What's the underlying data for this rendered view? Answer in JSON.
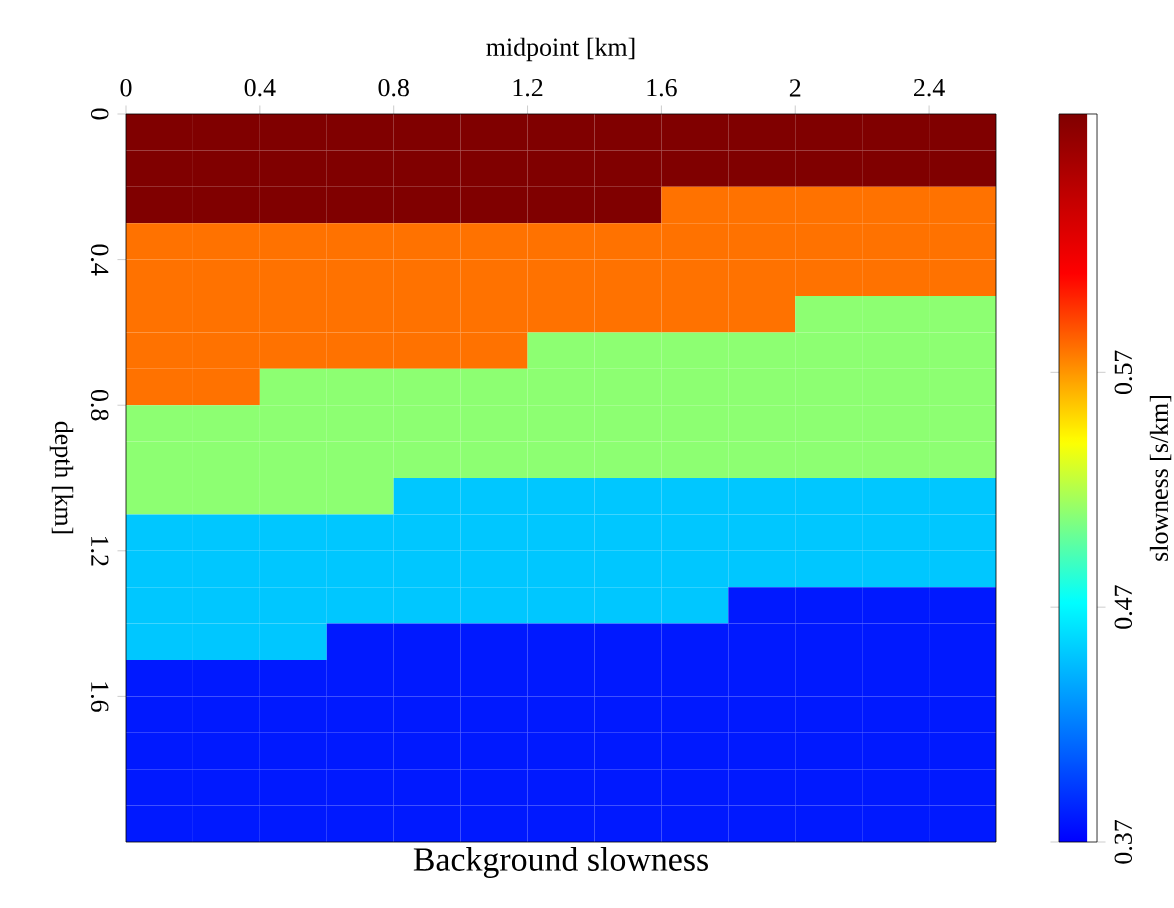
{
  "chart_data": {
    "type": "heatmap",
    "title": "Background slowness",
    "xlabel": "midpoint [km]",
    "ylabel": "depth [km]",
    "clabel": "slowness [s/km]",
    "x": [
      0.1,
      0.3,
      0.5,
      0.7,
      0.9,
      1.1,
      1.3,
      1.5,
      1.7,
      1.9,
      2.1,
      2.3,
      2.5
    ],
    "y": [
      0.05,
      0.15,
      0.25,
      0.35,
      0.45,
      0.55,
      0.65,
      0.75,
      0.85,
      0.95,
      1.05,
      1.15,
      1.25,
      1.35,
      1.45,
      1.55,
      1.65,
      1.75,
      1.85,
      1.95
    ],
    "cells": [
      [
        0.68,
        0.68,
        0.68,
        0.68,
        0.68,
        0.68,
        0.68,
        0.68,
        0.68,
        0.68,
        0.68,
        0.68,
        0.68
      ],
      [
        0.68,
        0.68,
        0.68,
        0.68,
        0.68,
        0.68,
        0.68,
        0.68,
        0.68,
        0.68,
        0.68,
        0.68,
        0.68
      ],
      [
        0.68,
        0.68,
        0.68,
        0.68,
        0.68,
        0.68,
        0.68,
        0.68,
        0.58,
        0.58,
        0.58,
        0.58,
        0.58
      ],
      [
        0.58,
        0.58,
        0.58,
        0.58,
        0.58,
        0.58,
        0.58,
        0.58,
        0.58,
        0.58,
        0.58,
        0.58,
        0.58
      ],
      [
        0.58,
        0.58,
        0.58,
        0.58,
        0.58,
        0.58,
        0.58,
        0.58,
        0.58,
        0.58,
        0.58,
        0.58,
        0.58
      ],
      [
        0.58,
        0.58,
        0.58,
        0.58,
        0.58,
        0.58,
        0.58,
        0.58,
        0.58,
        0.58,
        0.51,
        0.51,
        0.51
      ],
      [
        0.58,
        0.58,
        0.58,
        0.58,
        0.58,
        0.58,
        0.51,
        0.51,
        0.51,
        0.51,
        0.51,
        0.51,
        0.51
      ],
      [
        0.58,
        0.58,
        0.51,
        0.51,
        0.51,
        0.51,
        0.51,
        0.51,
        0.51,
        0.51,
        0.51,
        0.51,
        0.51
      ],
      [
        0.51,
        0.51,
        0.51,
        0.51,
        0.51,
        0.51,
        0.51,
        0.51,
        0.51,
        0.51,
        0.51,
        0.51,
        0.51
      ],
      [
        0.51,
        0.51,
        0.51,
        0.51,
        0.51,
        0.51,
        0.51,
        0.51,
        0.51,
        0.51,
        0.51,
        0.51,
        0.51
      ],
      [
        0.51,
        0.51,
        0.51,
        0.51,
        0.45,
        0.45,
        0.45,
        0.45,
        0.45,
        0.45,
        0.45,
        0.45,
        0.45
      ],
      [
        0.45,
        0.45,
        0.45,
        0.45,
        0.45,
        0.45,
        0.45,
        0.45,
        0.45,
        0.45,
        0.45,
        0.45,
        0.45
      ],
      [
        0.45,
        0.45,
        0.45,
        0.45,
        0.45,
        0.45,
        0.45,
        0.45,
        0.45,
        0.45,
        0.45,
        0.45,
        0.45
      ],
      [
        0.45,
        0.45,
        0.45,
        0.45,
        0.45,
        0.45,
        0.45,
        0.45,
        0.45,
        0.38,
        0.38,
        0.38,
        0.38
      ],
      [
        0.45,
        0.45,
        0.45,
        0.38,
        0.38,
        0.38,
        0.38,
        0.38,
        0.38,
        0.38,
        0.38,
        0.38,
        0.38
      ],
      [
        0.38,
        0.38,
        0.38,
        0.38,
        0.38,
        0.38,
        0.38,
        0.38,
        0.38,
        0.38,
        0.38,
        0.38,
        0.38
      ],
      [
        0.38,
        0.38,
        0.38,
        0.38,
        0.38,
        0.38,
        0.38,
        0.38,
        0.38,
        0.38,
        0.38,
        0.38,
        0.38
      ],
      [
        0.38,
        0.38,
        0.38,
        0.38,
        0.38,
        0.38,
        0.38,
        0.38,
        0.38,
        0.38,
        0.38,
        0.38,
        0.38
      ],
      [
        0.38,
        0.38,
        0.38,
        0.38,
        0.38,
        0.38,
        0.38,
        0.38,
        0.38,
        0.38,
        0.38,
        0.38,
        0.38
      ],
      [
        0.38,
        0.38,
        0.38,
        0.38,
        0.38,
        0.38,
        0.38,
        0.38,
        0.38,
        0.38,
        0.38,
        0.38,
        0.38
      ]
    ],
    "xlim": [
      0,
      2.6
    ],
    "ylim": [
      2.0,
      0
    ],
    "xticks": [
      0,
      0.4,
      0.8,
      1.2,
      1.6,
      2,
      2.4
    ],
    "yticks": [
      0,
      0.4,
      0.8,
      1.2,
      1.6
    ],
    "clim": [
      0.37,
      0.68
    ],
    "cticks": [
      0.37,
      0.47,
      0.57
    ]
  }
}
